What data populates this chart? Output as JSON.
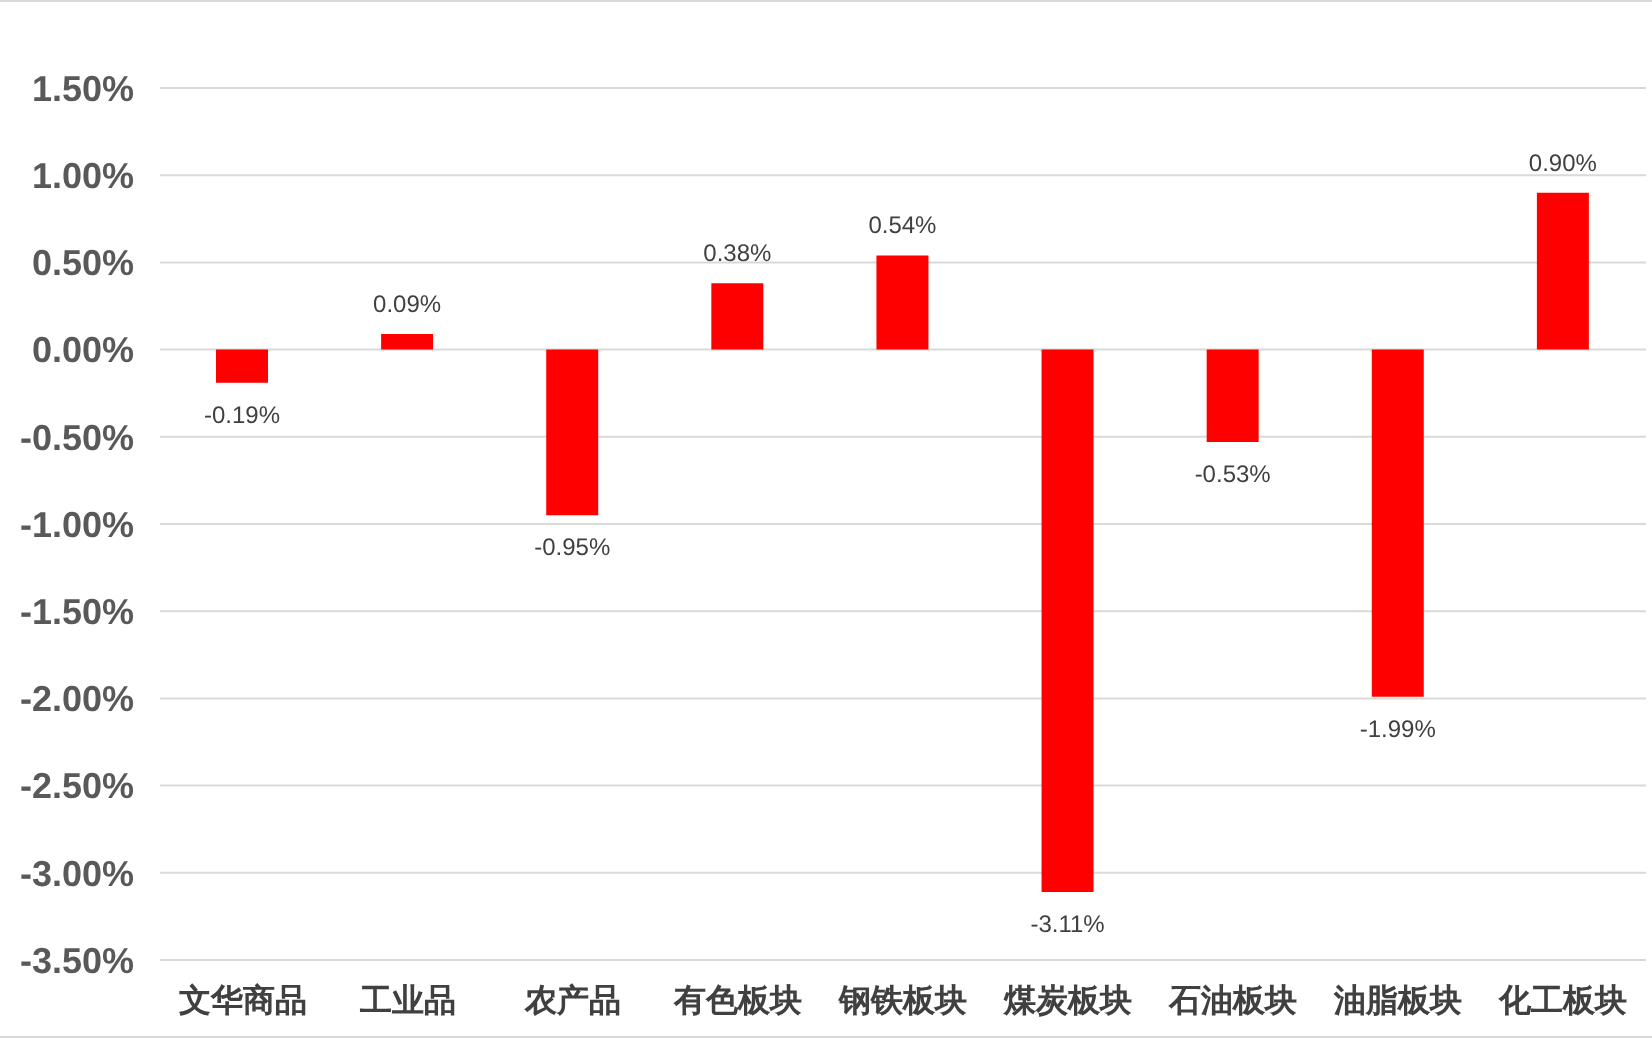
{
  "chart_data": {
    "type": "bar",
    "categories": [
      "文华商品",
      "工业品",
      "农产品",
      "有色板块",
      "钢铁板块",
      "煤炭板块",
      "石油板块",
      "油脂板块",
      "化工板块"
    ],
    "values": [
      -0.19,
      0.09,
      -0.95,
      0.38,
      0.54,
      -3.11,
      -0.53,
      -1.99,
      0.9
    ],
    "color": "#ff0000",
    "value_labels": [
      "-0.19%",
      "0.09%",
      "-0.95%",
      "0.38%",
      "0.54%",
      "-3.11%",
      "-0.53%",
      "-1.99%",
      "0.90%"
    ],
    "ylim": [
      -3.5,
      1.5
    ],
    "yticks": [
      {
        "value": -3.5,
        "label": "-3.50%"
      },
      {
        "value": -3,
        "label": "-3.00%"
      },
      {
        "value": -2.5,
        "label": "-2.50%"
      },
      {
        "value": -2,
        "label": "-2.00%"
      },
      {
        "value": -1.5,
        "label": "-1.50%"
      },
      {
        "value": -1,
        "label": "-1.00%"
      },
      {
        "value": -0.5,
        "label": "-0.50%"
      },
      {
        "value": 0,
        "label": "0.00%"
      },
      {
        "value": 0.5,
        "label": "0.50%"
      },
      {
        "value": 1,
        "label": "1.00%"
      },
      {
        "value": 1.5,
        "label": "1.50%"
      }
    ],
    "grid": "y"
  }
}
